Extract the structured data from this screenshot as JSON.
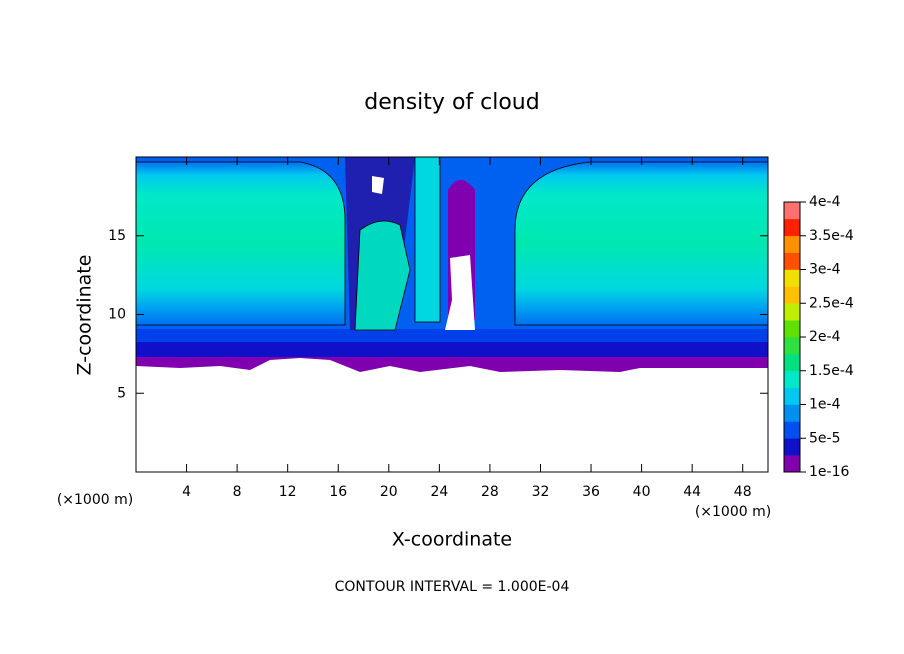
{
  "chart_data": {
    "type": "contour",
    "title": "density of cloud",
    "x_label": "X-coordinate",
    "y_label": "Z-coordinate",
    "y_unit": "(×1000 m)",
    "x_unit": "(×1000 m)",
    "footer": "CONTOUR INTERVAL = 1.000E-04",
    "xlim": [
      0,
      50
    ],
    "xticks": [
      4,
      8,
      12,
      16,
      20,
      24,
      28,
      32,
      36,
      40,
      44,
      48
    ],
    "ylim": [
      0,
      20
    ],
    "yticks": [
      5,
      10,
      15
    ],
    "colorbar": {
      "lim": [
        1e-16,
        0.0004
      ],
      "ticks": [
        {
          "value": 1e-16,
          "label": "1e-16"
        },
        {
          "value": 5e-05,
          "label": "5e-5"
        },
        {
          "value": 0.0001,
          "label": "1e-4"
        },
        {
          "value": 0.00015,
          "label": "1.5e-4"
        },
        {
          "value": 0.0002,
          "label": "2e-4"
        },
        {
          "value": 0.00025,
          "label": "2.5e-4"
        },
        {
          "value": 0.0003,
          "label": "3e-4"
        },
        {
          "value": 0.00035,
          "label": "3.5e-4"
        },
        {
          "value": 0.0004,
          "label": "4e-4"
        }
      ],
      "colors": [
        "#8000b0",
        "#1010c8",
        "#0050f0",
        "#0090f0",
        "#00c8f0",
        "#00e8c8",
        "#00e080",
        "#30e040",
        "#60e000",
        "#c0f000",
        "#ffc000",
        "#f0e000",
        "#ff5000",
        "#ff9000",
        "#ff2000",
        "#ff7070"
      ]
    }
  }
}
